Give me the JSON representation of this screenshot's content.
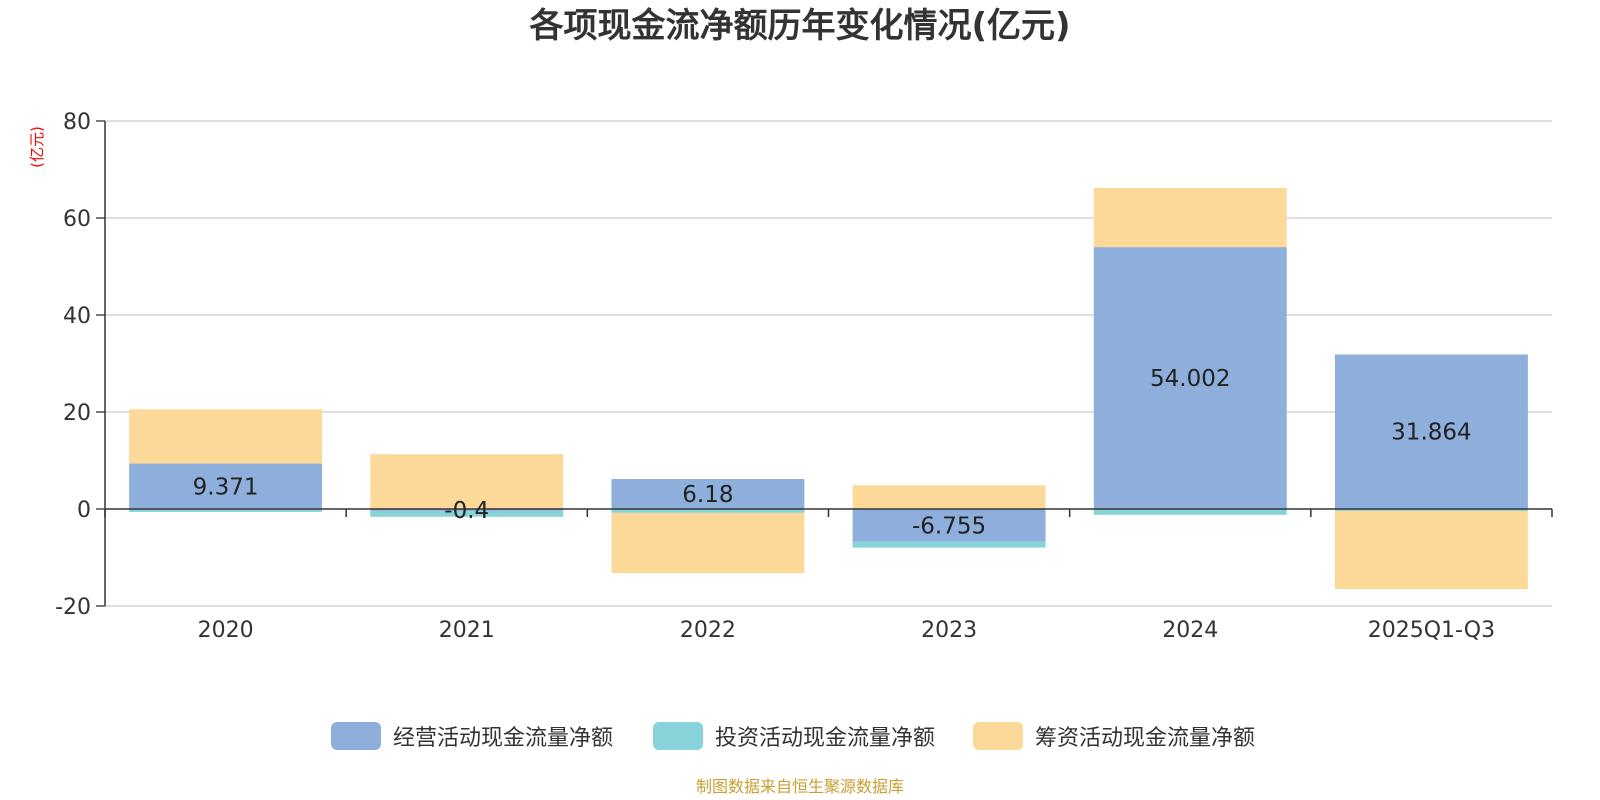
{
  "chart_data": {
    "type": "bar",
    "stacked": true,
    "title": "各项现金流净额历年变化情况(亿元)",
    "ylabel": "(亿元)",
    "xlabel": "",
    "ylim": [
      -20,
      80
    ],
    "yticks": [
      80,
      60,
      40,
      20,
      0,
      -20
    ],
    "grid": true,
    "categories": [
      "2020",
      "2021",
      "2022",
      "2023",
      "2024",
      "2025Q1-Q3"
    ],
    "series": [
      {
        "name": "经营活动现金流量净额",
        "color": "#8eafdc",
        "values": [
          9.371,
          -0.4,
          6.18,
          -6.755,
          54.002,
          31.864
        ],
        "labels": [
          "9.371",
          "-0.4",
          "6.18",
          "-6.755",
          "54.002",
          "31.864"
        ]
      },
      {
        "name": "投资活动现金流量净额",
        "color": "#86d4d8",
        "values": [
          -0.6,
          -1.2,
          -0.8,
          -1.2,
          -1.2,
          -0.4
        ]
      },
      {
        "name": "筹资活动现金流量净额",
        "color": "#fdd999",
        "values": [
          11.2,
          11.3,
          -12.4,
          4.9,
          12.2,
          -16.1
        ]
      }
    ],
    "legend_position": "bottom"
  },
  "source": "制图数据来自恒生聚源数据库",
  "colors": {
    "axis": "#333333",
    "grid": "#cccccc",
    "unit": "#ff0000",
    "source": "#c8a032"
  }
}
